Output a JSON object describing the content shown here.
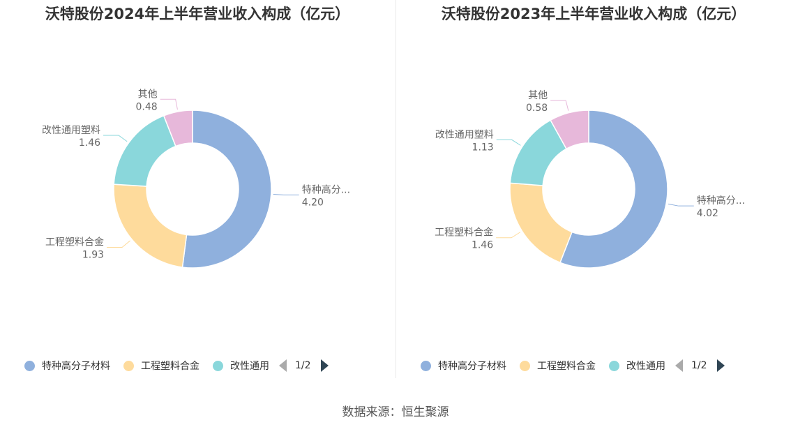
{
  "source": "数据来源：恒生聚源",
  "colors": [
    "#8fb0dd",
    "#fedb9c",
    "#8ad7db",
    "#e7b8da"
  ],
  "chart_data": [
    {
      "type": "pie",
      "title": "沃特股份2024年上半年营业收入构成（亿元）",
      "categories": [
        "特种高分子材料",
        "工程塑料合金",
        "改性通用塑料",
        "其他"
      ],
      "slice_labels": [
        "特种高分...",
        "工程塑料合金",
        "改性通用塑料",
        "其他"
      ],
      "value_labels": [
        "4.20",
        "1.93",
        "1.46",
        "0.48"
      ],
      "values": [
        4.2,
        1.93,
        1.46,
        0.48
      ],
      "legend": {
        "items": [
          "特种高分子材料",
          "工程塑料合金",
          "改性通用"
        ],
        "page": "1/2",
        "position": "bottom"
      }
    },
    {
      "type": "pie",
      "title": "沃特股份2023年上半年营业收入构成（亿元）",
      "categories": [
        "特种高分子材料",
        "工程塑料合金",
        "改性通用塑料",
        "其他"
      ],
      "slice_labels": [
        "特种高分...",
        "工程塑料合金",
        "改性通用塑料",
        "其他"
      ],
      "value_labels": [
        "4.02",
        "1.46",
        "1.13",
        "0.58"
      ],
      "values": [
        4.02,
        1.46,
        1.13,
        0.58
      ],
      "legend": {
        "items": [
          "特种高分子材料",
          "工程塑料合金",
          "改性通用"
        ],
        "page": "1/2",
        "position": "bottom"
      }
    }
  ]
}
